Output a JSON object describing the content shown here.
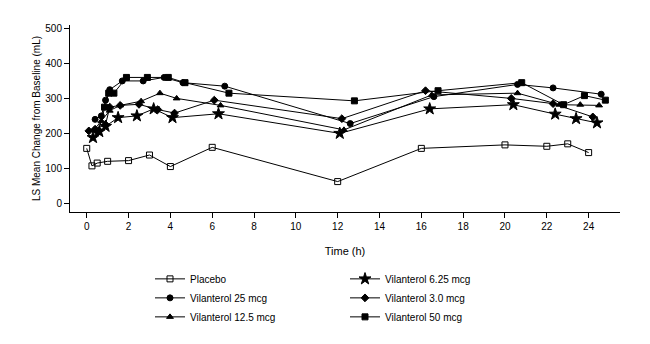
{
  "chart_data": {
    "type": "line",
    "x_label": "Time (h)",
    "y_label": "LS Mean Change from Baseline (mL)",
    "xlim": [
      -0.8,
      25.5
    ],
    "xticks": [
      0,
      2,
      4,
      6,
      8,
      10,
      12,
      14,
      16,
      18,
      20,
      22,
      24
    ],
    "ylim": [
      -25,
      510
    ],
    "yticks": [
      0,
      100,
      200,
      300,
      400,
      500
    ],
    "grid": false,
    "legend": "bottom",
    "series": [
      {
        "name": "Placebo",
        "color": "#000000",
        "marker": "square-open",
        "line_style": "solid",
        "x": [
          0,
          0.25,
          0.5,
          1,
          2,
          3,
          4,
          6,
          12,
          16,
          20,
          22,
          23,
          24
        ],
        "values": [
          157,
          107,
          115,
          120,
          122,
          138,
          105,
          160,
          62,
          157,
          167,
          163,
          170,
          145
        ]
      },
      {
        "name": "Vilanterol 6.25 mcg",
        "color": "#000000",
        "marker": "star",
        "line_style": "solid",
        "x": [
          0.3,
          0.6,
          0.9,
          1.5,
          2.4,
          3.2,
          4.1,
          6.3,
          12.1,
          16.4,
          20.4,
          22.4,
          23.4,
          24.4
        ],
        "values": [
          188,
          205,
          220,
          245,
          250,
          270,
          245,
          256,
          200,
          270,
          282,
          255,
          242,
          230
        ]
      },
      {
        "name": "Vilanterol 25 mcg",
        "color": "#000000",
        "marker": "circle",
        "line_style": "solid",
        "x": [
          0.4,
          0.7,
          0.9,
          1.1,
          1.7,
          2.7,
          3.7,
          4.6,
          6.6,
          12.6,
          16.6,
          20.6,
          22.3,
          24.6
        ],
        "values": [
          240,
          250,
          295,
          325,
          350,
          350,
          360,
          345,
          335,
          228,
          305,
          340,
          330,
          312
        ]
      },
      {
        "name": "Vilanterol 3.0 mcg",
        "color": "#000000",
        "marker": "diamond",
        "line_style": "solid",
        "x": [
          0.1,
          0.4,
          0.9,
          1.1,
          1.6,
          2.5,
          3.4,
          4.2,
          6.1,
          12.2,
          16.2,
          20.3,
          22.3,
          24.2
        ],
        "values": [
          207,
          212,
          225,
          275,
          280,
          283,
          268,
          258,
          295,
          242,
          322,
          300,
          285,
          247
        ]
      },
      {
        "name": "Vilanterol 12.5 mcg",
        "color": "#000000",
        "marker": "triangle-up",
        "line_style": "solid",
        "x": [
          0.35,
          0.7,
          1.1,
          1.6,
          2.6,
          3.5,
          4.3,
          6.4,
          12.3,
          16.5,
          20.6,
          22.6,
          23.6,
          24.5
        ],
        "values": [
          210,
          235,
          265,
          280,
          292,
          315,
          300,
          280,
          210,
          310,
          315,
          282,
          282,
          280
        ]
      },
      {
        "name": "Vilanterol 50 mcg",
        "color": "#000000",
        "marker": "square",
        "line_style": "solid",
        "x": [
          0.55,
          0.85,
          1.05,
          1.3,
          1.9,
          2.9,
          3.9,
          4.7,
          6.8,
          12.8,
          16.8,
          20.8,
          22.8,
          23.8,
          24.8
        ],
        "values": [
          205,
          275,
          315,
          315,
          360,
          360,
          360,
          345,
          315,
          293,
          322,
          345,
          282,
          308,
          295
        ]
      }
    ]
  }
}
